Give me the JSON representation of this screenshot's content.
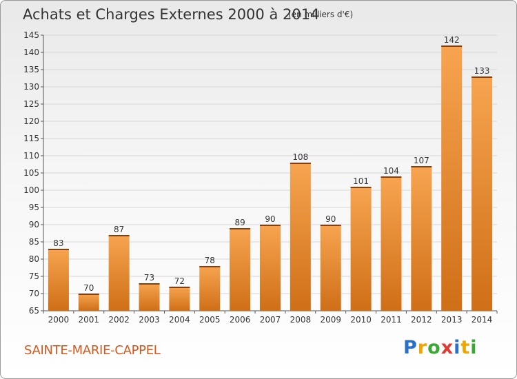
{
  "header": {
    "title": "Achats et Charges Externes 2000 à 2014",
    "unit": "(en milliers d'€)"
  },
  "footer": {
    "commune": "SAINTE-MARIE-CAPPEL",
    "brand": [
      "P",
      "r",
      "o",
      "x",
      "i",
      "t",
      "i"
    ],
    "brand_colors": [
      "#2a6fc8",
      "#f0a500",
      "#3aa832",
      "#e23a2f",
      "#2a6fc8",
      "#f0a500",
      "#3aa832"
    ]
  },
  "colors": {
    "bar_light": "#f7a450",
    "bar_dark": "#cf6f17",
    "accent": "#d8561a"
  },
  "chart_data": {
    "type": "bar",
    "categories": [
      "2000",
      "2001",
      "2002",
      "2003",
      "2004",
      "2005",
      "2006",
      "2007",
      "2008",
      "2009",
      "2010",
      "2011",
      "2012",
      "2013",
      "2014"
    ],
    "values": [
      83,
      70,
      87,
      73,
      72,
      78,
      89,
      90,
      108,
      90,
      101,
      104,
      107,
      142,
      133
    ],
    "ylim": [
      65,
      145
    ],
    "yticks": [
      65,
      70,
      75,
      80,
      85,
      90,
      95,
      100,
      105,
      110,
      115,
      120,
      125,
      130,
      135,
      140,
      145
    ],
    "grid": true
  }
}
